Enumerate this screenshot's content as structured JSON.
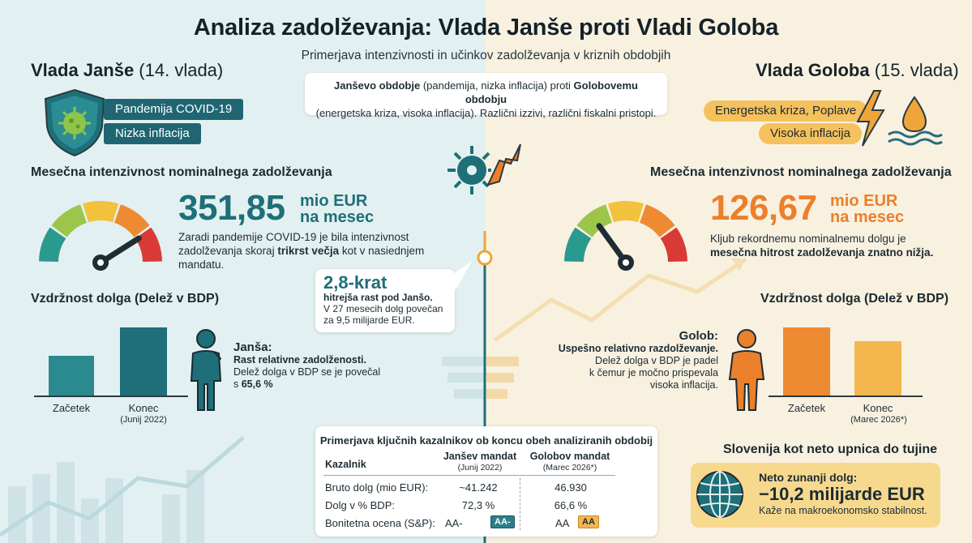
{
  "header": {
    "title": "Analiza zadolževanja: Vlada Janše proti Vladi Goloba",
    "subtitle": "Primerjava intenzivnosti in učinkov zadolževanja v kriznih obdobjih"
  },
  "compare_box": {
    "part1_bold": "Janševo obdobje",
    "part1": " (pandemija, nizka inflacija) proti ",
    "part2_bold": "Golobovemu obdobju",
    "part3": "(energetska kriza, visoka inflacija). Različni izzivi, različni fiskalni pristopi."
  },
  "left": {
    "title_bold": "Vlada Janše",
    "title_rest": " (14. vlada)",
    "tags": [
      "Pandemija COVID-19",
      "Nizka inflacija"
    ],
    "intensity_heading": "Mesečna intenzivnost nominalnega zadolževanja",
    "intensity_value": "351,85",
    "intensity_unit1": "mio EUR",
    "intensity_unit2": "na mesec",
    "intensity_note_1": "Zaradi pandemije COVID-19 je bila intenzivnost zadolževanja skoraj ",
    "intensity_note_bold": "trikrst večja",
    "intensity_note_2": " kot v nasiednjem mandatu.",
    "gauge_level": 0.82,
    "sustain_heading": "Vzdržnost dolga (Delež v BDP)",
    "bars": [
      {
        "label": "Začetek",
        "sub": "",
        "value": 58
      },
      {
        "label": "Konec",
        "sub": "(Junij 2022)",
        "value": 100
      }
    ],
    "person_title": "Janša:",
    "person_sub": "Rast relativne zadolženosti.",
    "person_text_1": "Delež dolga v BDP se je povečal",
    "person_text_2": "s ",
    "person_text_bold": "65,6 %"
  },
  "right": {
    "title_bold": "Vlada Goloba",
    "title_rest": " (15. vlada)",
    "tags": [
      "Energetska kriza, Poplave",
      "Visoka inflacija"
    ],
    "intensity_heading": "Mesečna intenzivnost nominalnega zadolževanja",
    "intensity_value": "126,67",
    "intensity_unit1": "mio EUR",
    "intensity_unit2": "na mesec",
    "intensity_note_1": "Kljub rekordnemu nominalnemu dolgu je ",
    "intensity_note_bold": "mesečna hitrost zadolževanja znatno nižja.",
    "gauge_level": 0.3,
    "sustain_heading": "Vzdržnost dolga (Delež v BDP)",
    "bars": [
      {
        "label": "Začetek",
        "sub": "",
        "value": 100
      },
      {
        "label": "Konec",
        "sub": "(Marec 2026*)",
        "value": 80
      }
    ],
    "person_title": "Golob:",
    "person_sub": "Uspešno relativno razdolževanje.",
    "person_text_1": "Delež dolga v BDP je padel",
    "person_text_2": "k čemur je močno prispevala",
    "person_text_3": "visoka inflacija."
  },
  "callout": {
    "big": "2,8-krat",
    "sub": "hitrejša rast pod Janšo.",
    "text": "V 27 mesecih dolg povečan za 9,5 milijarde EUR."
  },
  "table": {
    "title": "Primerjava ključnih kazalnikov ob koncu obeh analiziranih obdobij",
    "col0": "Kazalnik",
    "col1": "Janšev mandat",
    "col1_sub": "(Junij 2022)",
    "col2": "Golobov mandat",
    "col2_sub": "(Marec 2026*)",
    "rows": [
      {
        "name": "Bruto dolg (mio EUR):",
        "v1": "~41.242",
        "v2": "46.930"
      },
      {
        "name": "Dolg v % BDP:",
        "v1": "72,3 %",
        "v2": "66,6 %"
      },
      {
        "name": "Bonitetna ocena (S&P):",
        "v1": "AA-",
        "v2": "AA",
        "b1": "AA-",
        "b2": "AA"
      }
    ]
  },
  "debtor": {
    "heading": "Slovenija kot neto upnica do tujine",
    "label": "Neto zunanji dolg:",
    "value": "−10,2 milijarde EUR",
    "note": "Kaže na makroekonomsko stabilnost."
  },
  "colors": {
    "teal": "#1e6f78",
    "orange": "#ec7f2a",
    "yellow": "#f5c15c"
  }
}
